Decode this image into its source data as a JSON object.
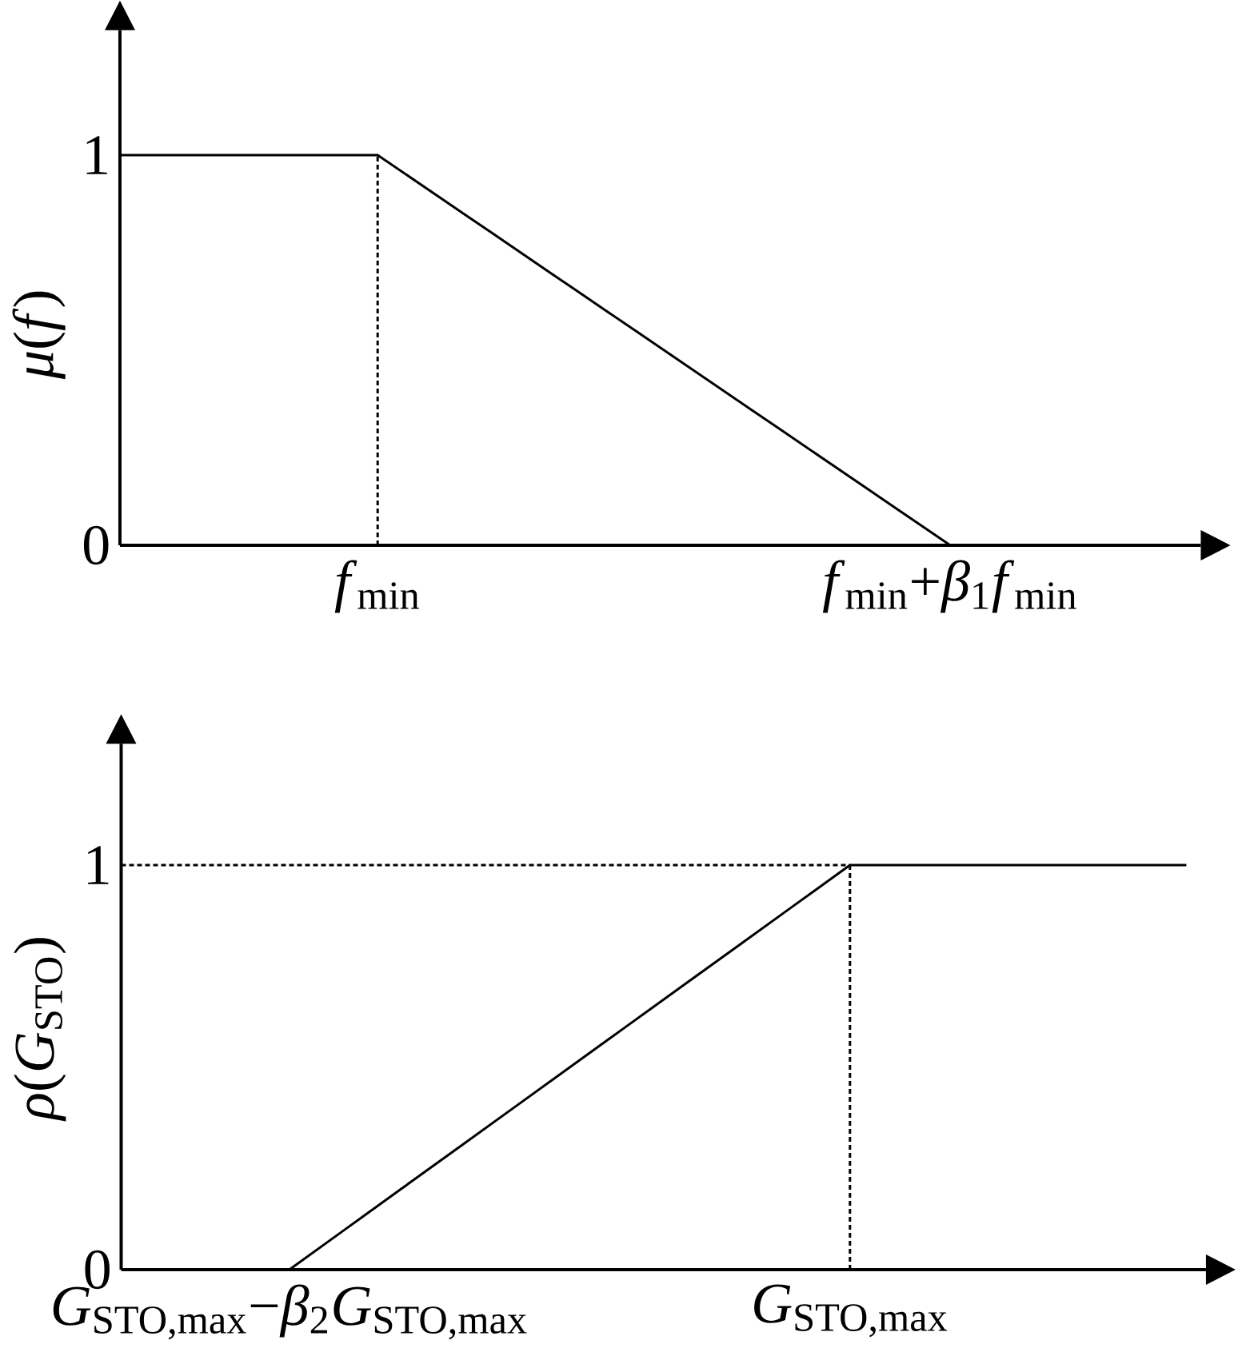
{
  "chart_data": [
    {
      "type": "line",
      "ylabel": "*μ*(*f*)",
      "categories": [
        null,
        null,
        null,
        null,
        null,
        null,
        null,
        null,
        null,
        "*f*$_{min}$",
        null,
        null,
        null,
        null,
        null,
        null,
        null,
        null,
        null,
        null,
        null,
        null,
        null,
        null,
        null,
        null,
        null,
        null,
        null,
        "*f*$_{min}$+*β*$_{1}$*f*$_{min}$"
      ],
      "series": [
        {
          "color": "#000000",
          "line_style": "solid",
          "values": [
            1,
            1,
            1,
            1,
            1,
            1,
            1,
            1,
            1,
            1,
            0.95,
            0.9,
            0.85,
            0.8,
            0.75,
            0.7,
            0.65,
            0.6,
            0.55,
            0.5,
            0.45,
            0.4,
            0.35,
            0.3,
            0.25,
            0.2,
            0.15,
            0.1,
            0.05,
            0
          ]
        }
      ],
      "ref_lines": [
        {
          "axis": "x",
          "value": "*f*$_{min}$",
          "color": "#000000",
          "line_style": "dotted"
        }
      ],
      "ylim": [
        0,
        1.32
      ],
      "yticks": [
        0,
        1
      ],
      "marker": "none"
    },
    {
      "type": "line",
      "ylabel": "*ρ*(*G*$_{STO}$)",
      "categories": [
        null,
        null,
        null,
        "*G*$_{STO,max}$−*β*$_{2}$*G*$_{STO,max}$",
        null,
        null,
        null,
        null,
        null,
        null,
        null,
        null,
        null,
        "*G*$_{STO,max}$",
        null,
        null,
        null,
        null,
        null,
        null
      ],
      "series": [
        {
          "color": "#000000",
          "line_style": "solid",
          "values": [
            null,
            null,
            null,
            0,
            0.1,
            0.2,
            0.3,
            0.4,
            0.5,
            0.6,
            0.7,
            0.8,
            0.9,
            1,
            1,
            1,
            1,
            1,
            1,
            1
          ]
        },
        {
          "color": "#000000",
          "line_style": "dotted",
          "values": [
            1,
            1,
            1,
            1,
            1,
            1,
            1,
            1,
            1,
            1,
            1,
            1,
            1,
            1,
            null,
            null,
            null,
            null,
            null,
            null
          ]
        }
      ],
      "ref_lines": [
        {
          "axis": "x",
          "value": "*G*$_{STO,max}$",
          "color": "#000000",
          "line_style": "dotted"
        }
      ],
      "ylim": [
        0,
        1.3
      ],
      "yticks": [
        0,
        1
      ],
      "marker": "none"
    }
  ]
}
